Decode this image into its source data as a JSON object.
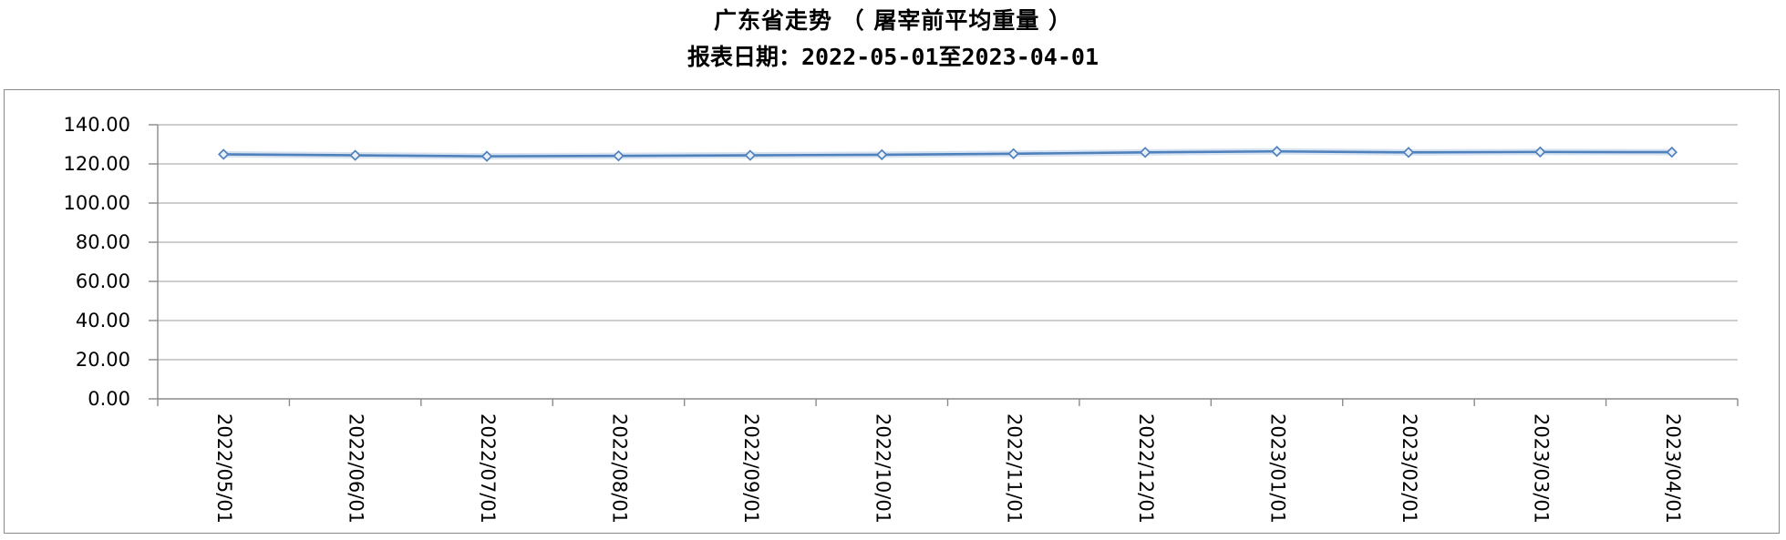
{
  "header": {
    "title": "广东省走势 （ 屠宰前平均重量 ）",
    "subtitle": "报表日期：2022-05-01至2023-04-01"
  },
  "chart_data": {
    "type": "line",
    "title": "广东省走势 （ 屠宰前平均重量 ）",
    "subtitle": "报表日期：2022-05-01至2023-04-01",
    "categories": [
      "2022/05/01",
      "2022/06/01",
      "2022/07/01",
      "2022/08/01",
      "2022/09/01",
      "2022/10/01",
      "2022/11/01",
      "2022/12/01",
      "2023/01/01",
      "2023/02/01",
      "2023/03/01",
      "2023/04/01"
    ],
    "series": [
      {
        "name": "屠宰前平均重量",
        "values": [
          124.9,
          124.4,
          123.9,
          124.1,
          124.4,
          124.7,
          125.2,
          125.9,
          126.4,
          125.9,
          126.1,
          126.0
        ]
      }
    ],
    "ylim": [
      0,
      140
    ],
    "ytick_step": 20,
    "ytick_labels": [
      "0.00",
      "20.00",
      "40.00",
      "60.00",
      "80.00",
      "100.00",
      "120.00",
      "140.00"
    ],
    "xlabel": "",
    "ylabel": "",
    "grid": "horizontal-only",
    "legend": "none",
    "x_labels_rotated_deg": 90,
    "line_color": "#4F81BD",
    "marker": "diamond",
    "marker_fill": "#EAF0F8",
    "grid_color": "#9c9c9c",
    "axis_color": "#8a8a8a"
  }
}
